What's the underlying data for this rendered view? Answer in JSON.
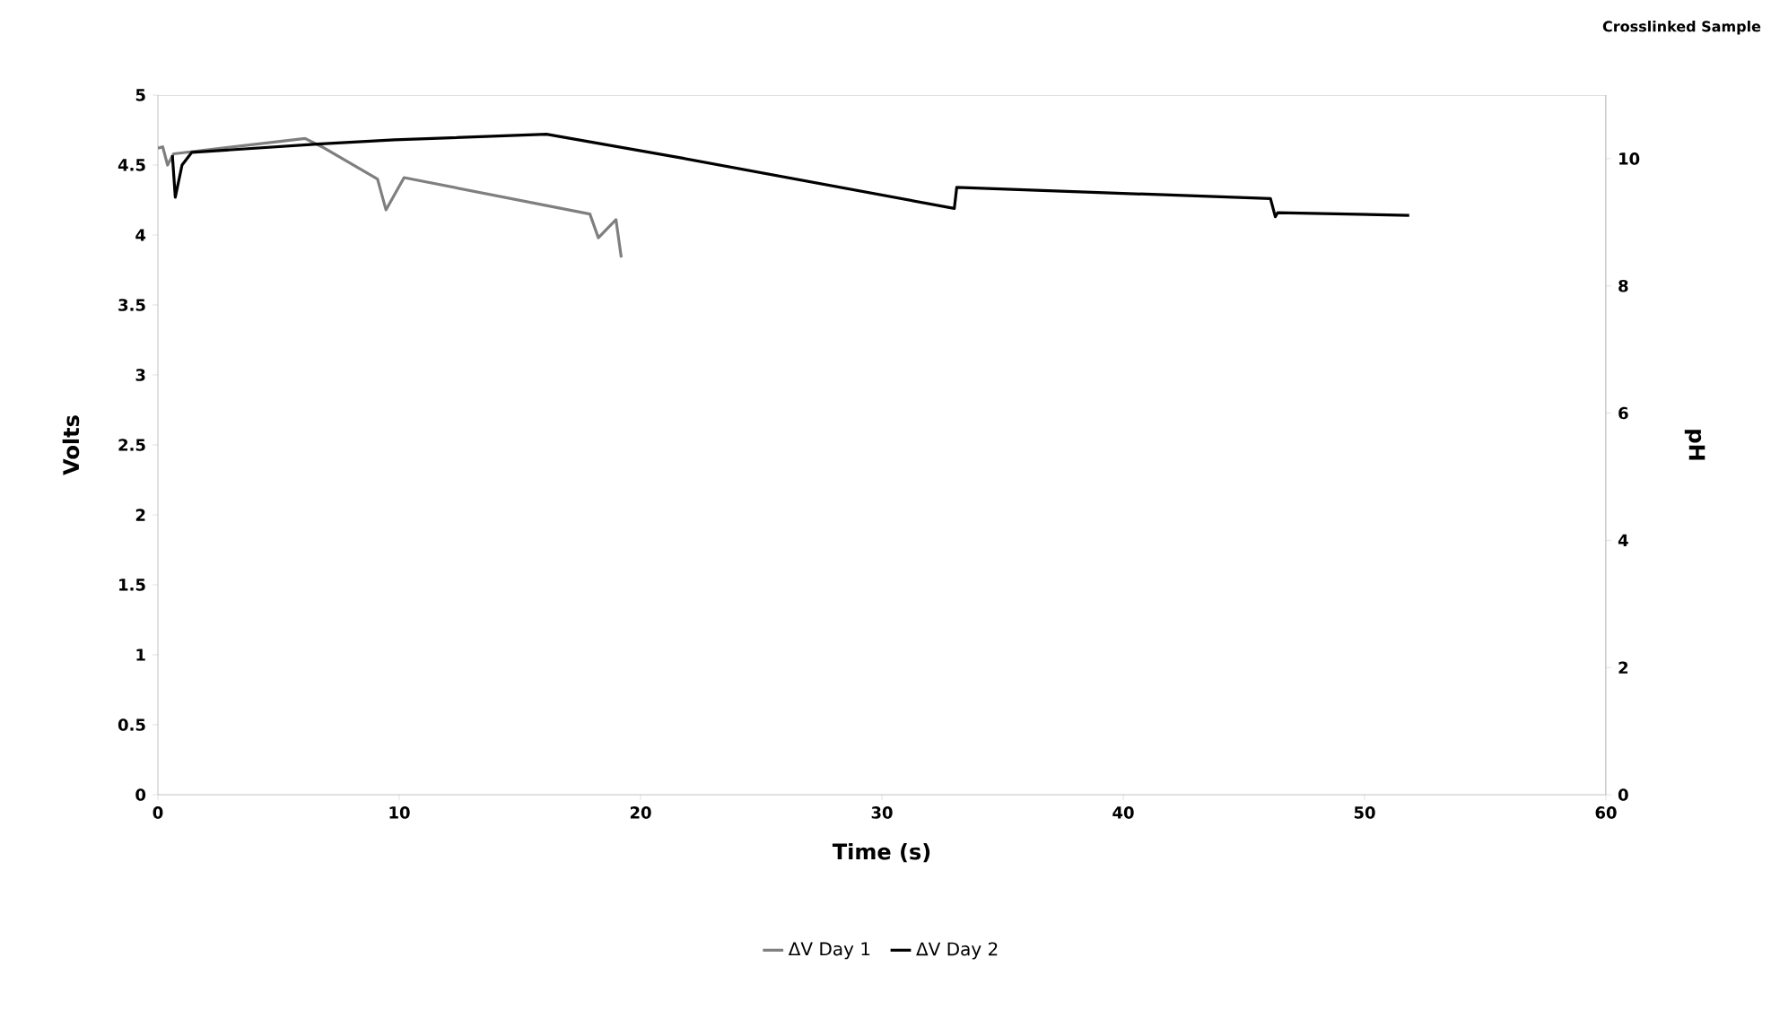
{
  "chart_data": {
    "type": "line",
    "title": "Crosslinked Sample",
    "xlabel": "Time (s)",
    "ylabel": "Volts",
    "y2label": "pH",
    "xlim": [
      0,
      60
    ],
    "xticks": [
      0,
      10,
      20,
      30,
      40,
      50,
      60
    ],
    "ylim": [
      0,
      5
    ],
    "yticks": [
      0,
      0.5,
      1,
      1.5,
      2,
      2.5,
      3,
      3.5,
      4,
      4.5,
      5
    ],
    "y2lim": [
      0,
      11
    ],
    "y2ticks": [
      0,
      2,
      4,
      6,
      8,
      10
    ],
    "grid": false,
    "legend": "bottom",
    "marker": "none",
    "line_style": "solid",
    "series": [
      {
        "name": "ΔV Day 1",
        "color": "#7f7f7f",
        "x": [
          0,
          0.2,
          0.4,
          0.65,
          6.1,
          6.8,
          9.1,
          9.45,
          10.2,
          17.9,
          18.25,
          18.98,
          19.2
        ],
        "values": [
          4.62,
          4.63,
          4.5,
          4.58,
          4.69,
          4.63,
          4.4,
          4.18,
          4.41,
          4.15,
          3.98,
          4.11,
          3.84
        ]
      },
      {
        "name": "ΔV Day 2",
        "color": "#000000",
        "x": [
          0.6,
          0.72,
          1.0,
          1.4,
          6.6,
          9.8,
          16.1,
          21.7,
          33.0,
          33.1,
          46.1,
          46.3,
          46.4,
          51.85
        ],
        "values": [
          4.57,
          4.27,
          4.5,
          4.59,
          4.65,
          4.68,
          4.72,
          4.55,
          4.19,
          4.34,
          4.26,
          4.13,
          4.16,
          4.14
        ]
      }
    ]
  }
}
